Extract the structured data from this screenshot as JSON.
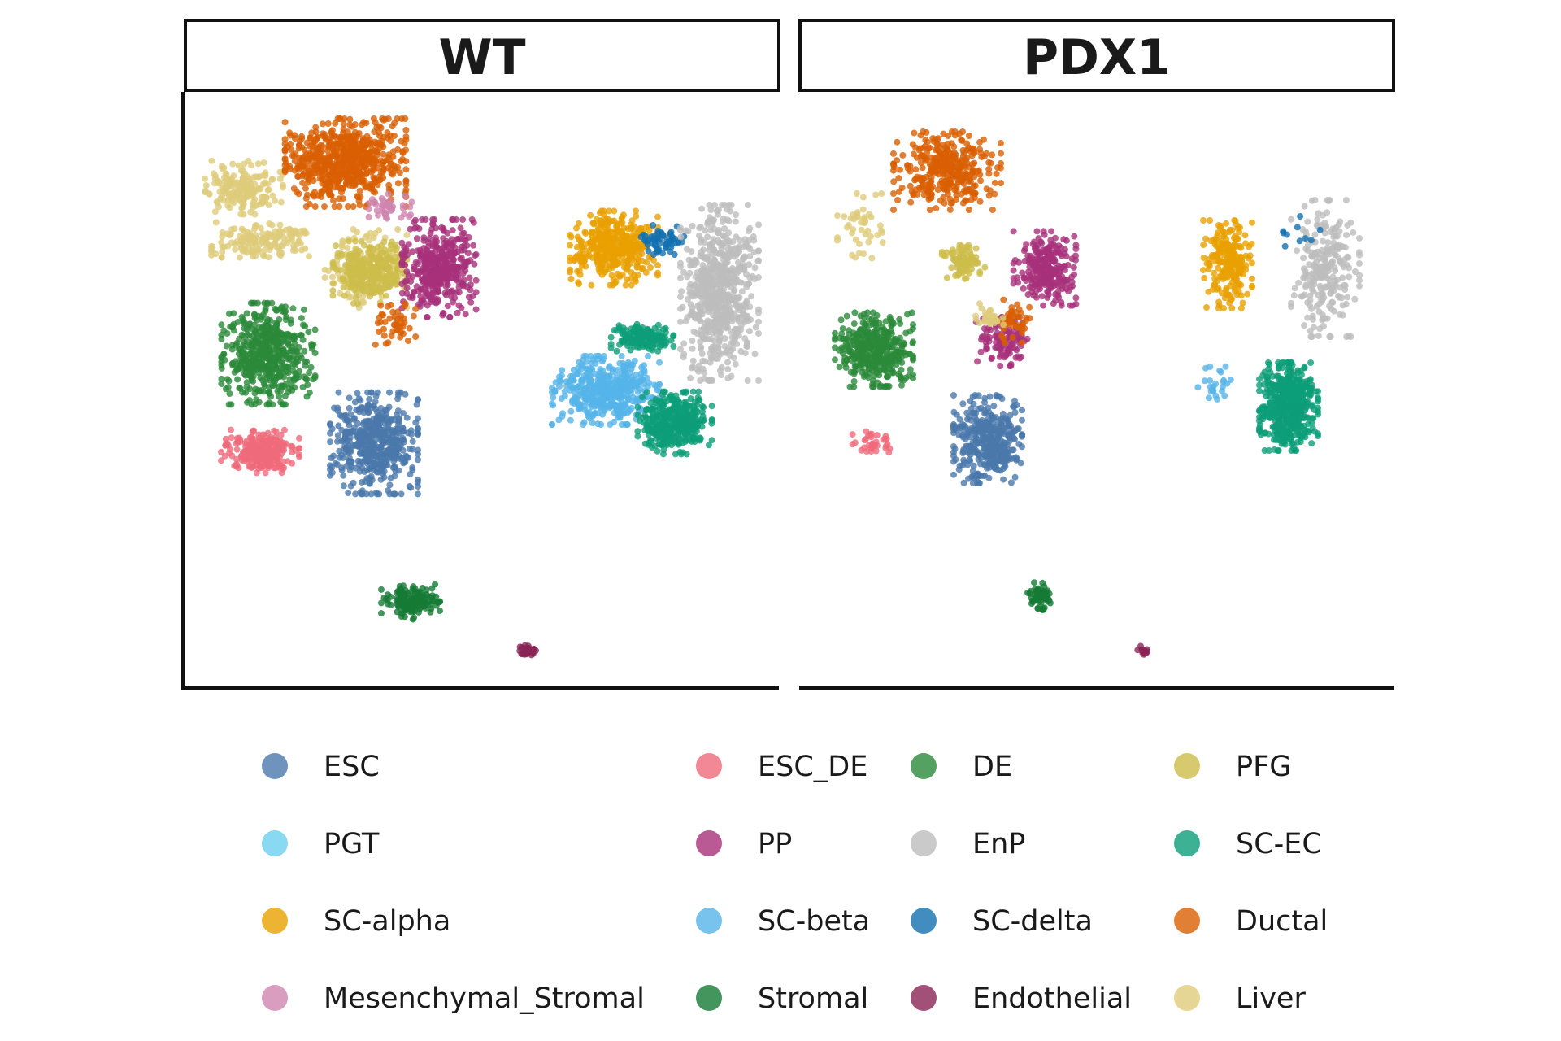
{
  "chart_data": {
    "type": "scatter",
    "title": "",
    "xlabel": "",
    "ylabel": "",
    "grid": false,
    "legend_position": "bottom",
    "panels": [
      {
        "label": "WT"
      },
      {
        "label": "PDX1"
      }
    ],
    "series": [
      {
        "name": "ESC",
        "color": "#4a78ab"
      },
      {
        "name": "ESC_DE",
        "color": "#ef6a7a"
      },
      {
        "name": "DE",
        "color": "#2a8a3a"
      },
      {
        "name": "PFG",
        "color": "#cdbd4a"
      },
      {
        "name": "PGT",
        "color": "#6ccff0"
      },
      {
        "name": "PP",
        "color": "#a8317a"
      },
      {
        "name": "EnP",
        "color": "#bdbdbd"
      },
      {
        "name": "SC-EC",
        "color": "#0c9e78"
      },
      {
        "name": "SC-alpha",
        "color": "#e8a000"
      },
      {
        "name": "SC-beta",
        "color": "#55b4e8"
      },
      {
        "name": "SC-delta",
        "color": "#1171b0"
      },
      {
        "name": "Ductal",
        "color": "#d95f02"
      },
      {
        "name": "Mesenchymal_Stromal",
        "color": "#d085b0"
      },
      {
        "name": "Stromal",
        "color": "#157a35"
      },
      {
        "name": "Endothelial",
        "color": "#8a2456"
      },
      {
        "name": "Liver",
        "color": "#dfcc7a"
      }
    ]
  }
}
